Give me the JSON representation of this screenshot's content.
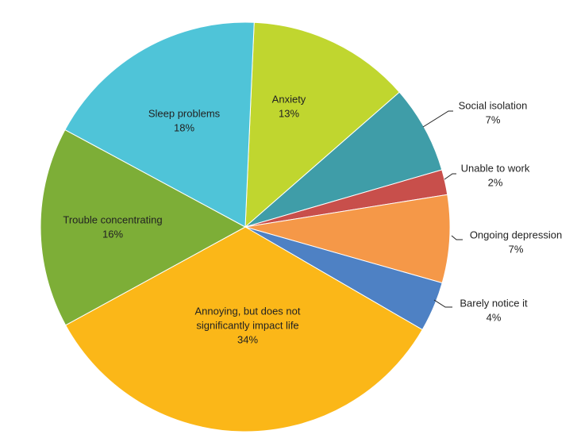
{
  "chart_data": {
    "type": "pie",
    "title": "",
    "slices": [
      {
        "label": "Anxiety",
        "value": 13,
        "display": "13%",
        "color": "#C0D62F"
      },
      {
        "label": "Social isolation",
        "value": 7,
        "display": "7%",
        "color": "#3F9DA8"
      },
      {
        "label": "Unable to work",
        "value": 2,
        "display": "2%",
        "color": "#C84F4B"
      },
      {
        "label": "Ongoing depression",
        "value": 7,
        "display": "7%",
        "color": "#F59848"
      },
      {
        "label": "Barely notice it",
        "value": 4,
        "display": "4%",
        "color": "#4E81C4"
      },
      {
        "label": "Annoying, but does not significantly impact life",
        "label_lines": [
          "Annoying, but does not",
          "significantly impact life"
        ],
        "value": 34,
        "display": "34%",
        "color": "#FBB718"
      },
      {
        "label": "Trouble concentrating",
        "value": 16,
        "display": "16%",
        "color": "#7DAE37"
      },
      {
        "label": "Sleep problems",
        "value": 18,
        "display": "18%",
        "color": "#4FC4D8"
      }
    ]
  }
}
